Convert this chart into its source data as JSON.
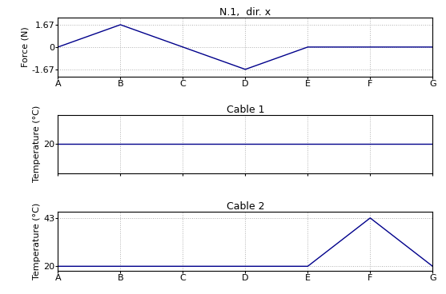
{
  "x_labels": [
    "A",
    "B",
    "C",
    "D",
    "E",
    "F",
    "G"
  ],
  "x_values": [
    0,
    1,
    2,
    3,
    4,
    5,
    6
  ],
  "force_y": [
    0,
    1.67,
    0,
    -1.67,
    0,
    0,
    0
  ],
  "force_title": "N.1,  dir. x",
  "force_ylabel": "Force (N)",
  "force_yticks": [
    -1.67,
    0,
    1.67
  ],
  "force_ylim": [
    -2.2,
    2.2
  ],
  "cable1_y": [
    20,
    20,
    20,
    20,
    20,
    20,
    20
  ],
  "cable1_title": "Cable 1",
  "cable1_ylabel": "Temperature (°C)",
  "cable1_yticks": [
    20
  ],
  "cable1_ylim": [
    17.5,
    22.5
  ],
  "cable2_y": [
    20,
    20,
    20,
    20,
    20,
    43,
    20
  ],
  "cable2_title": "Cable 2",
  "cable2_ylabel": "Temperature (°C)",
  "cable2_yticks": [
    20,
    43
  ],
  "cable2_ylim": [
    18,
    46
  ],
  "line_color": "#00008B",
  "background_color": "#ffffff",
  "grid_color": "#b0b0b0",
  "fontsize": 8,
  "title_fontsize": 9
}
